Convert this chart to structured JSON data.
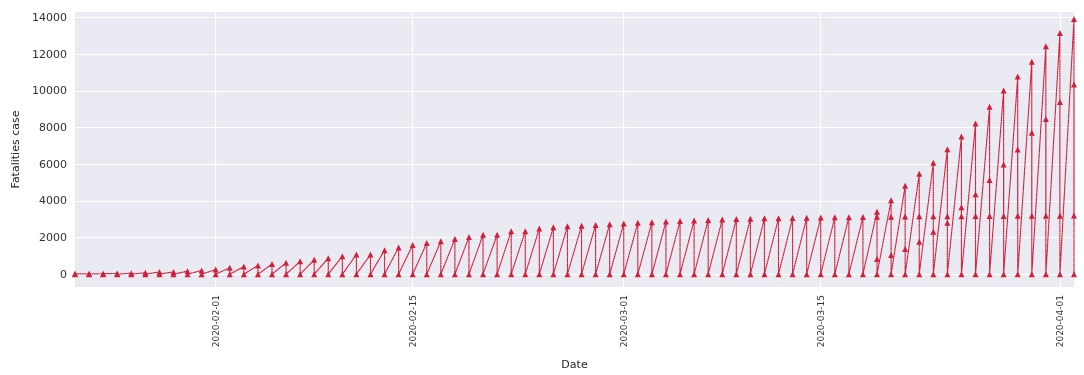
{
  "chart_data": {
    "type": "line",
    "xlabel": "Date",
    "ylabel": "Fatalities case",
    "xlim": [
      "2020-01-22",
      "2020-04-02"
    ],
    "ylim": [
      -700,
      14300
    ],
    "xticks": [
      "2020-02-01",
      "2020-02-15",
      "2020-03-01",
      "2020-03-15",
      "2020-04-01"
    ],
    "yticks": [
      0,
      2000,
      4000,
      6000,
      8000,
      10000,
      12000,
      14000
    ],
    "grid": true,
    "marker": "triangle",
    "line_style": "dotted",
    "series": [
      {
        "color": "#d21f3c",
        "x": [
          "2020-01-22",
          "2020-01-22",
          "2020-01-23",
          "2020-01-23",
          "2020-01-24",
          "2020-01-24",
          "2020-01-25",
          "2020-01-25",
          "2020-01-26",
          "2020-01-26",
          "2020-01-27",
          "2020-01-27",
          "2020-01-28",
          "2020-01-28",
          "2020-01-29",
          "2020-01-29",
          "2020-01-30",
          "2020-01-30",
          "2020-01-31",
          "2020-01-31",
          "2020-02-01",
          "2020-02-01",
          "2020-02-02",
          "2020-02-02",
          "2020-02-03",
          "2020-02-03",
          "2020-02-04",
          "2020-02-04",
          "2020-02-05",
          "2020-02-05",
          "2020-02-06",
          "2020-02-06",
          "2020-02-07",
          "2020-02-07",
          "2020-02-08",
          "2020-02-08",
          "2020-02-09",
          "2020-02-09",
          "2020-02-10",
          "2020-02-10",
          "2020-02-11",
          "2020-02-11",
          "2020-02-12",
          "2020-02-12",
          "2020-02-13",
          "2020-02-13",
          "2020-02-14",
          "2020-02-14",
          "2020-02-15",
          "2020-02-15",
          "2020-02-16",
          "2020-02-16",
          "2020-02-17",
          "2020-02-17",
          "2020-02-18",
          "2020-02-18",
          "2020-02-19",
          "2020-02-19",
          "2020-02-20",
          "2020-02-20",
          "2020-02-21",
          "2020-02-21",
          "2020-02-22",
          "2020-02-22",
          "2020-02-23",
          "2020-02-23",
          "2020-02-24",
          "2020-02-24",
          "2020-02-25",
          "2020-02-25",
          "2020-02-26",
          "2020-02-26",
          "2020-02-27",
          "2020-02-27",
          "2020-02-28",
          "2020-02-28",
          "2020-02-29",
          "2020-02-29",
          "2020-03-01",
          "2020-03-01",
          "2020-03-02",
          "2020-03-02",
          "2020-03-03",
          "2020-03-03",
          "2020-03-04",
          "2020-03-04",
          "2020-03-05",
          "2020-03-05",
          "2020-03-06",
          "2020-03-06",
          "2020-03-07",
          "2020-03-07",
          "2020-03-08",
          "2020-03-08",
          "2020-03-09",
          "2020-03-09",
          "2020-03-10",
          "2020-03-10",
          "2020-03-11",
          "2020-03-11",
          "2020-03-12",
          "2020-03-12",
          "2020-03-13",
          "2020-03-13",
          "2020-03-14",
          "2020-03-14",
          "2020-03-15",
          "2020-03-15",
          "2020-03-16",
          "2020-03-16",
          "2020-03-17",
          "2020-03-17",
          "2020-03-18",
          "2020-03-18",
          "2020-03-19",
          "2020-03-19",
          "2020-03-19",
          "2020-03-19",
          "2020-03-20",
          "2020-03-20",
          "2020-03-20",
          "2020-03-20",
          "2020-03-21",
          "2020-03-21",
          "2020-03-21",
          "2020-03-21",
          "2020-03-22",
          "2020-03-22",
          "2020-03-22",
          "2020-03-22",
          "2020-03-23",
          "2020-03-23",
          "2020-03-23",
          "2020-03-23",
          "2020-03-24",
          "2020-03-24",
          "2020-03-24",
          "2020-03-24",
          "2020-03-25",
          "2020-03-25",
          "2020-03-25",
          "2020-03-25",
          "2020-03-26",
          "2020-03-26",
          "2020-03-26",
          "2020-03-26",
          "2020-03-27",
          "2020-03-27",
          "2020-03-27",
          "2020-03-27",
          "2020-03-28",
          "2020-03-28",
          "2020-03-28",
          "2020-03-28",
          "2020-03-29",
          "2020-03-29",
          "2020-03-29",
          "2020-03-29",
          "2020-03-30",
          "2020-03-30",
          "2020-03-30",
          "2020-03-30",
          "2020-03-31",
          "2020-03-31",
          "2020-03-31",
          "2020-03-31",
          "2020-04-01",
          "2020-04-01",
          "2020-04-01",
          "2020-04-01",
          "2020-04-02",
          "2020-04-02",
          "2020-04-02",
          "2020-04-02"
        ],
        "values": [
          17,
          0,
          17,
          0,
          24,
          0,
          40,
          0,
          52,
          0,
          76,
          0,
          125,
          0,
          125,
          0,
          162,
          0,
          204,
          0,
          249,
          0,
          350,
          0,
          414,
          0,
          479,
          0,
          549,
          0,
          618,
          0,
          699,
          0,
          780,
          0,
          871,
          0,
          974,
          0,
          1068,
          0,
          1068,
          0,
          1310,
          0,
          1457,
          0,
          1596,
          0,
          1696,
          0,
          1789,
          0,
          1921,
          0,
          2029,
          0,
          2144,
          0,
          2144,
          0,
          2346,
          0,
          2346,
          0,
          2495,
          0,
          2563,
          0,
          2615,
          0,
          2641,
          0,
          2682,
          0,
          2727,
          0,
          2761,
          0,
          2803,
          0,
          2835,
          0,
          2871,
          0,
          2902,
          0,
          2931,
          0,
          2959,
          0,
          2986,
          0,
          3008,
          0,
          3024,
          0,
          3046,
          0,
          3056,
          0,
          3062,
          0,
          3075,
          0,
          3085,
          0,
          3099,
          0,
          3111,
          0,
          3122,
          0,
          3405,
          3130,
          831,
          0,
          4032,
          3133,
          1043,
          0,
          4825,
          3139,
          1375,
          0,
          5476,
          3153,
          1772,
          0,
          6077,
          3153,
          2311,
          0,
          6820,
          3160,
          2808,
          0,
          7503,
          3163,
          3647,
          0,
          8215,
          3169,
          4365,
          0,
          9134,
          3174,
          5138,
          0,
          10023,
          3177,
          5982,
          0,
          10779,
          3182,
          6803,
          0,
          11591,
          3186,
          7716,
          0,
          12428,
          3187,
          8464,
          0,
          13155,
          3193,
          9387,
          0,
          13915,
          3199,
          10348,
          0
        ]
      }
    ]
  }
}
